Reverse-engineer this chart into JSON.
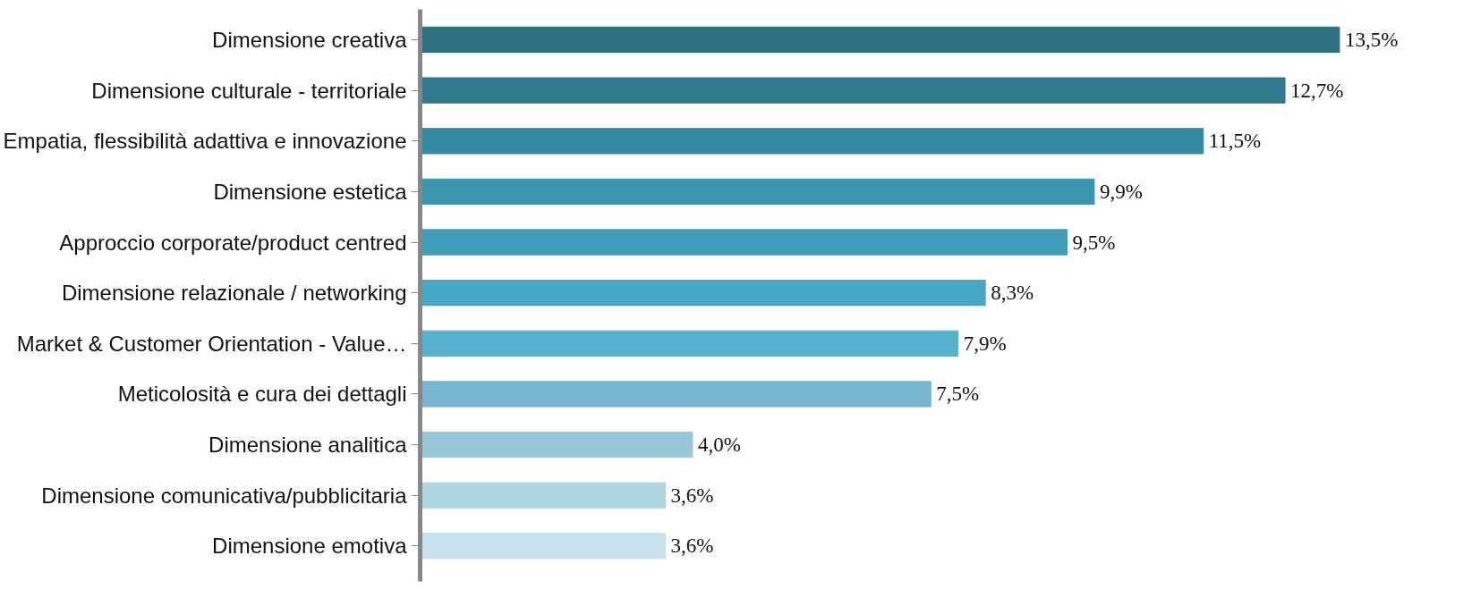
{
  "chart_data": {
    "type": "bar",
    "orientation": "horizontal",
    "categories": [
      "Dimensione creativa",
      "Dimensione culturale - territoriale",
      "Empatia, flessibilità adattiva e innovazione",
      "Dimensione estetica",
      "Approccio corporate/product centred",
      "Dimensione relazionale / networking",
      "Market & Customer Orientation - Value…",
      "Meticolosità e cura dei dettagli",
      "Dimensione analitica",
      "Dimensione comunicativa/pubblicitaria",
      "Dimensione emotiva"
    ],
    "values": [
      13.5,
      12.7,
      11.5,
      9.9,
      9.5,
      8.3,
      7.9,
      7.5,
      4.0,
      3.6,
      3.6
    ],
    "value_labels": [
      "13,5%",
      "12,7%",
      "11,5%",
      "9,9%",
      "9,5%",
      "8,3%",
      "7,9%",
      "7,5%",
      "4,0%",
      "3,6%",
      "3,6%"
    ],
    "colors": [
      "#2e6f80",
      "#2f7a8c",
      "#338a9e",
      "#3a96ae",
      "#3f9fb8",
      "#45a8c4",
      "#55b1cc",
      "#78b5cf",
      "#98c6d9",
      "#b0d5e3",
      "#c5e0ea"
    ],
    "grid": false
  }
}
